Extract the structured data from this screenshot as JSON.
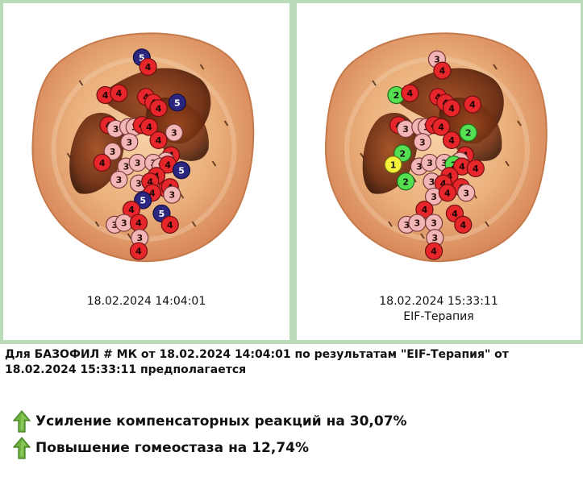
{
  "panels": [
    {
      "date": "18.02.2024 14:04:01",
      "subtitle": "",
      "markers": [
        {
          "level": 5,
          "u": 0.5,
          "v": 0.1
        },
        {
          "level": 4,
          "u": 0.56,
          "v": 0.15
        },
        {
          "level": 4,
          "u": 0.15,
          "v": 0.3
        },
        {
          "level": 4,
          "u": 0.28,
          "v": 0.29
        },
        {
          "level": 4,
          "u": 0.54,
          "v": 0.31
        },
        {
          "level": 4,
          "u": 0.61,
          "v": 0.34
        },
        {
          "level": 4,
          "u": 0.66,
          "v": 0.37
        },
        {
          "level": 5,
          "u": 0.84,
          "v": 0.34
        },
        {
          "level": 4,
          "u": 0.18,
          "v": 0.46
        },
        {
          "level": 3,
          "u": 0.25,
          "v": 0.48
        },
        {
          "level": 3,
          "u": 0.37,
          "v": 0.47
        },
        {
          "level": 3,
          "u": 0.43,
          "v": 0.47
        },
        {
          "level": 4,
          "u": 0.5,
          "v": 0.46
        },
        {
          "level": 4,
          "u": 0.57,
          "v": 0.47
        },
        {
          "level": 3,
          "u": 0.81,
          "v": 0.5
        },
        {
          "level": 3,
          "u": 0.38,
          "v": 0.55
        },
        {
          "level": 4,
          "u": 0.66,
          "v": 0.54
        },
        {
          "level": 3,
          "u": 0.22,
          "v": 0.6
        },
        {
          "level": 4,
          "u": 0.78,
          "v": 0.62
        },
        {
          "level": 3,
          "u": 0.73,
          "v": 0.65
        },
        {
          "level": 4,
          "u": 0.12,
          "v": 0.66
        },
        {
          "level": 3,
          "u": 0.35,
          "v": 0.68
        },
        {
          "level": 3,
          "u": 0.46,
          "v": 0.66
        },
        {
          "level": 3,
          "u": 0.61,
          "v": 0.66
        },
        {
          "level": 3,
          "u": 0.68,
          "v": 0.68
        },
        {
          "level": 4,
          "u": 0.75,
          "v": 0.67
        },
        {
          "level": 5,
          "u": 0.88,
          "v": 0.7
        },
        {
          "level": 4,
          "u": 0.64,
          "v": 0.73
        },
        {
          "level": 3,
          "u": 0.28,
          "v": 0.75
        },
        {
          "level": 3,
          "u": 0.47,
          "v": 0.77
        },
        {
          "level": 4,
          "u": 0.58,
          "v": 0.76
        },
        {
          "level": 4,
          "u": 0.74,
          "v": 0.8
        },
        {
          "level": 4,
          "u": 0.77,
          "v": 0.79
        },
        {
          "level": 3,
          "u": 0.79,
          "v": 0.83
        },
        {
          "level": 4,
          "u": 0.6,
          "v": 0.82
        },
        {
          "level": 5,
          "u": 0.51,
          "v": 0.86
        },
        {
          "level": 4,
          "u": 0.4,
          "v": 0.91
        },
        {
          "level": 3,
          "u": 0.24,
          "v": 0.99
        },
        {
          "level": 3,
          "u": 0.33,
          "v": 0.98
        },
        {
          "level": 4,
          "u": 0.47,
          "v": 0.98
        },
        {
          "level": 5,
          "u": 0.69,
          "v": 0.93
        },
        {
          "level": 4,
          "u": 0.77,
          "v": 0.99
        },
        {
          "level": 3,
          "u": 0.48,
          "v": 1.06
        },
        {
          "level": 4,
          "u": 0.47,
          "v": 1.13
        }
      ]
    },
    {
      "date": "18.02.2024 15:33:11",
      "subtitle": "EIF-Терапия",
      "markers": [
        {
          "level": 3,
          "u": 0.52,
          "v": 0.11
        },
        {
          "level": 4,
          "u": 0.57,
          "v": 0.17
        },
        {
          "level": 2,
          "u": 0.13,
          "v": 0.3
        },
        {
          "level": 4,
          "u": 0.26,
          "v": 0.29
        },
        {
          "level": 4,
          "u": 0.53,
          "v": 0.31
        },
        {
          "level": 4,
          "u": 0.6,
          "v": 0.34
        },
        {
          "level": 4,
          "u": 0.66,
          "v": 0.37
        },
        {
          "level": 4,
          "u": 0.86,
          "v": 0.35
        },
        {
          "level": 4,
          "u": 0.15,
          "v": 0.46
        },
        {
          "level": 3,
          "u": 0.22,
          "v": 0.48
        },
        {
          "level": 3,
          "u": 0.36,
          "v": 0.47
        },
        {
          "level": 3,
          "u": 0.42,
          "v": 0.47
        },
        {
          "level": 4,
          "u": 0.49,
          "v": 0.46
        },
        {
          "level": 4,
          "u": 0.56,
          "v": 0.47
        },
        {
          "level": 2,
          "u": 0.82,
          "v": 0.5
        },
        {
          "level": 3,
          "u": 0.38,
          "v": 0.55
        },
        {
          "level": 4,
          "u": 0.66,
          "v": 0.54
        },
        {
          "level": 2,
          "u": 0.19,
          "v": 0.61
        },
        {
          "level": 4,
          "u": 0.79,
          "v": 0.62
        },
        {
          "level": 3,
          "u": 0.74,
          "v": 0.65
        },
        {
          "level": 1,
          "u": 0.1,
          "v": 0.67
        },
        {
          "level": 3,
          "u": 0.35,
          "v": 0.68
        },
        {
          "level": 3,
          "u": 0.45,
          "v": 0.66
        },
        {
          "level": 3,
          "u": 0.59,
          "v": 0.66
        },
        {
          "level": 2,
          "u": 0.68,
          "v": 0.67
        },
        {
          "level": 4,
          "u": 0.76,
          "v": 0.68
        },
        {
          "level": 4,
          "u": 0.89,
          "v": 0.69
        },
        {
          "level": 4,
          "u": 0.64,
          "v": 0.73
        },
        {
          "level": 2,
          "u": 0.22,
          "v": 0.76
        },
        {
          "level": 3,
          "u": 0.47,
          "v": 0.76
        },
        {
          "level": 4,
          "u": 0.58,
          "v": 0.77
        },
        {
          "level": 4,
          "u": 0.75,
          "v": 0.79
        },
        {
          "level": 3,
          "u": 0.8,
          "v": 0.82
        },
        {
          "level": 3,
          "u": 0.49,
          "v": 0.84
        },
        {
          "level": 4,
          "u": 0.62,
          "v": 0.82
        },
        {
          "level": 4,
          "u": 0.4,
          "v": 0.91
        },
        {
          "level": 4,
          "u": 0.69,
          "v": 0.93
        },
        {
          "level": 3,
          "u": 0.23,
          "v": 0.99
        },
        {
          "level": 3,
          "u": 0.33,
          "v": 0.98
        },
        {
          "level": 3,
          "u": 0.49,
          "v": 0.98
        },
        {
          "level": 4,
          "u": 0.77,
          "v": 0.99
        },
        {
          "level": 3,
          "u": 0.5,
          "v": 1.06
        },
        {
          "level": 4,
          "u": 0.49,
          "v": 1.13
        }
      ]
    }
  ],
  "level_colors": {
    "1": {
      "fill": "#f4f23a",
      "stroke": "#6d6a10",
      "text": "#222"
    },
    "2": {
      "fill": "#55e052",
      "stroke": "#1f6a1c",
      "text": "#111"
    },
    "3": {
      "fill": "#f2b6b6",
      "stroke": "#7a3a3a",
      "text": "#2a0d0d"
    },
    "4": {
      "fill": "#e6262a",
      "stroke": "#6d0f0f",
      "text": "#1a0303"
    },
    "5": {
      "fill": "#2b2680",
      "stroke": "#110e3f",
      "text": "#ffffff"
    }
  },
  "summary": {
    "text": "Для БАЗОФИЛ # МК от 18.02.2024 14:04:01 по результатам \"EIF-Терапия\" от 18.02.2024 15:33:11 предполагается"
  },
  "results": [
    {
      "label": "Усиление компенсаторных реакций на 30,07%",
      "direction": "up",
      "icon": "up-arrow-icon"
    },
    {
      "label": "Повышение гомеостаза на 12,74%",
      "direction": "up",
      "icon": "up-arrow-icon"
    }
  ],
  "colors": {
    "frame": "#b9dbb8",
    "arrow_green": "#6fb33f",
    "arrow_dark": "#3e7a1f"
  }
}
